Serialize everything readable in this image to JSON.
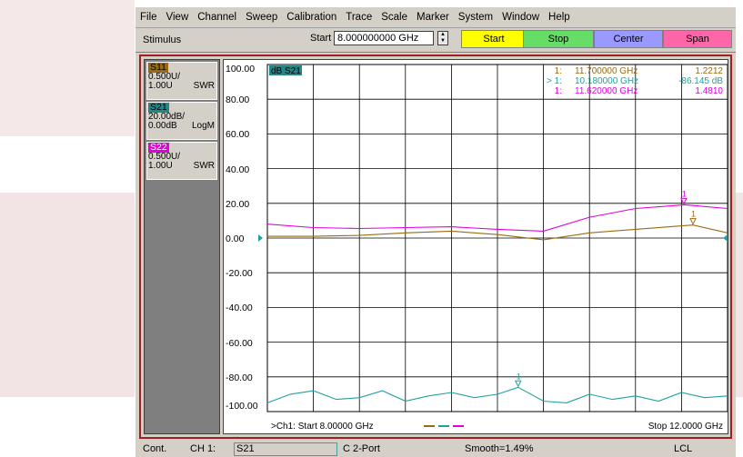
{
  "menu": [
    "File",
    "View",
    "Channel",
    "Sweep",
    "Calibration",
    "Trace",
    "Scale",
    "Marker",
    "System",
    "Window",
    "Help"
  ],
  "toolbar": {
    "stimulus_label": "Stimulus",
    "start_label": "Start",
    "start_value": "8.000000000 GHz",
    "buttons": [
      {
        "label": "Start",
        "color": "#ffff00"
      },
      {
        "label": "Stop",
        "color": "#66dd66"
      },
      {
        "label": "Center",
        "color": "#9999ff"
      },
      {
        "label": "Span",
        "color": "#ff66aa"
      }
    ]
  },
  "traces_panel": [
    {
      "name": "S11",
      "scale": "0.500U/",
      "ref": "1.00U",
      "format": "SWR",
      "color": "#9a6a10"
    },
    {
      "name": "S21",
      "scale": "20.00dB/",
      "ref": "0.00dB",
      "format": "LogM",
      "color": "#208888"
    },
    {
      "name": "S22",
      "scale": "0.500U/",
      "ref": "1.00U",
      "format": "SWR",
      "color": "#e000e0"
    }
  ],
  "plot": {
    "active_trace_label": "dB S21",
    "active_trace_color": "#208888",
    "y_labels": [
      "100.00",
      "80.00",
      "60.00",
      "40.00",
      "20.00",
      "0.00",
      "-20.00",
      "-40.00",
      "-60.00",
      "-80.00",
      "-100.00"
    ],
    "start_info": ">Ch1: Start  8.00000 GHz",
    "stop_info": "Stop  12.0000 GHz"
  },
  "markers": [
    {
      "prefix": "1:",
      "freq": "11.700000 GHz",
      "value": "1.2212",
      "color": "#9a6a10"
    },
    {
      "prefix": "> 1:",
      "freq": "10.180000 GHz",
      "value": "-86.145 dB",
      "color": "#20a0a0"
    },
    {
      "prefix": "1:",
      "freq": "11.620000 GHz",
      "value": "1.4810",
      "color": "#e000e0"
    }
  ],
  "chart_data": {
    "type": "line",
    "x_unit": "GHz",
    "xlim": [
      8,
      12
    ],
    "ylim": [
      -100,
      100
    ],
    "series": [
      {
        "name": "S11",
        "color": "#9a6a10",
        "x": [
          8,
          8.4,
          8.8,
          9.2,
          9.6,
          10.0,
          10.4,
          10.8,
          11.2,
          11.6,
          11.7,
          12.0
        ],
        "y": [
          1,
          1,
          1.5,
          3,
          4,
          2,
          -1,
          3,
          5,
          7,
          7.5,
          3
        ]
      },
      {
        "name": "S22",
        "color": "#e000e0",
        "x": [
          8,
          8.4,
          8.8,
          9.2,
          9.6,
          10.0,
          10.4,
          10.8,
          11.2,
          11.6,
          11.62,
          12.0
        ],
        "y": [
          8,
          6,
          5.5,
          6,
          6.5,
          5,
          4,
          12,
          17,
          19,
          19.2,
          17
        ]
      },
      {
        "name": "S21",
        "color": "#20a0a0",
        "x": [
          8,
          8.2,
          8.4,
          8.6,
          8.8,
          9.0,
          9.2,
          9.4,
          9.6,
          9.8,
          10.0,
          10.18,
          10.4,
          10.6,
          10.8,
          11.0,
          11.2,
          11.4,
          11.6,
          11.8,
          12.0
        ],
        "y": [
          -95,
          -90,
          -88,
          -93,
          -92,
          -88,
          -94,
          -91,
          -89,
          -92,
          -90,
          -86,
          -94,
          -95,
          -90,
          -93,
          -91,
          -94,
          -89,
          -92,
          -91
        ]
      }
    ]
  },
  "status": {
    "mode": "Cont.",
    "channel": "CH 1:",
    "trace": "S21",
    "cal": "C  2-Port",
    "smooth": "Smooth=1.49%",
    "remote": "LCL"
  }
}
